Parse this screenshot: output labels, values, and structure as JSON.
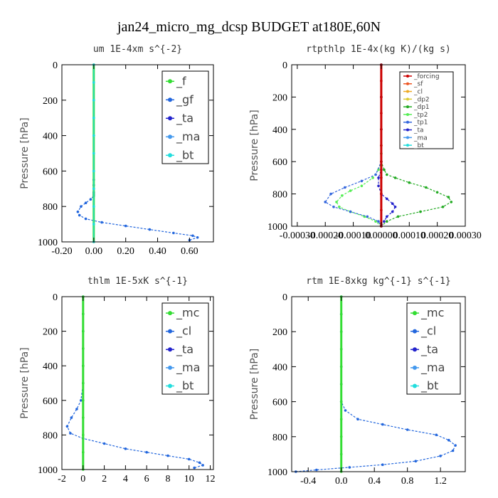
{
  "figure_title": "jan24_micro_mg_dcsp  BUDGET at180E,60N",
  "colors": {
    "f": "#33dd33",
    "gf": "#2266dd",
    "ta": "#2222cc",
    "ma": "#4499ee",
    "bt": "#22dddd",
    "forcing": "#cc0000",
    "sf": "#ee5522",
    "cl": "#eeaa22",
    "dp2": "#ddcc33",
    "dp1": "#22aa22",
    "tp2": "#55ee55",
    "tp1": "#3366dd",
    "mc": "#33dd33",
    "clb": "#2266dd"
  },
  "chart_data": [
    {
      "type": "line",
      "title": "um  1E-4xm s^{-2}",
      "ylabel": "Pressure [hPa]",
      "xlim": [
        -0.2,
        0.75
      ],
      "ylim": [
        1000,
        0
      ],
      "xticks": [
        -0.2,
        0.0,
        0.2,
        0.4,
        0.6
      ],
      "xtick_labels": [
        "-0.20",
        "0.00",
        "0.20",
        "0.40",
        "0.60"
      ],
      "yticks": [
        0,
        200,
        400,
        600,
        800,
        1000
      ],
      "legend": [
        "_f",
        "_gf",
        "_ta",
        "_ma",
        "_bt"
      ],
      "series": [
        {
          "key": "gf",
          "color": "#2266dd",
          "x": [
            0,
            0,
            0,
            0,
            0,
            0,
            0,
            0,
            0,
            0,
            0,
            0,
            0,
            -0.02,
            -0.05,
            -0.08,
            -0.1,
            -0.09,
            -0.05,
            0.05,
            0.2,
            0.35,
            0.5,
            0.62,
            0.65,
            0.6
          ],
          "y": [
            0,
            100,
            200,
            300,
            400,
            500,
            600,
            650,
            680,
            700,
            720,
            730,
            740,
            760,
            780,
            800,
            830,
            850,
            870,
            890,
            910,
            930,
            950,
            965,
            975,
            990
          ]
        },
        {
          "key": "f",
          "color": "#33dd33",
          "x": [
            0,
            0,
            0,
            0,
            0,
            0,
            0,
            0,
            0,
            0,
            0
          ],
          "y": [
            0,
            100,
            200,
            300,
            400,
            500,
            600,
            700,
            800,
            900,
            1000
          ]
        },
        {
          "key": "bt",
          "color": "#22dddd",
          "x": [
            0,
            0,
            0,
            0,
            0,
            0,
            0,
            0,
            0,
            0,
            0
          ],
          "y": [
            0,
            100,
            200,
            300,
            400,
            500,
            600,
            700,
            800,
            900,
            1000
          ]
        }
      ]
    },
    {
      "type": "line",
      "title": "rtpthlp  1E-4x(kg K)/(kg s)",
      "ylabel": "Pressure [hPa]",
      "xlim": [
        -0.00032,
        0.0003
      ],
      "ylim": [
        1000,
        0
      ],
      "xticks": [
        -0.0003,
        -0.0002,
        -0.0001,
        0.0,
        0.0001,
        0.0002,
        0.0003
      ],
      "xtick_labels": [
        "-0.00030",
        "-0.00020",
        "-0.00010",
        "0.00000",
        "0.00010",
        "0.00020",
        "0.00030"
      ],
      "yticks": [
        0,
        200,
        400,
        600,
        800,
        1000
      ],
      "legend": [
        "_forcing",
        "_sf",
        "_cl",
        "_dp2",
        "_dp1",
        "_tp2",
        "_tp1",
        "_ta",
        "_ma",
        "_bt"
      ],
      "series": [
        {
          "key": "dp1",
          "color": "#22aa22",
          "x": [
            0,
            0,
            0,
            0,
            0,
            0,
            1e-05,
            2e-05,
            5e-05,
            0.0001,
            0.00016,
            0.0002,
            0.00024,
            0.00025,
            0.00022,
            0.00014,
            6e-05,
            2e-05,
            0
          ],
          "y": [
            0,
            200,
            400,
            500,
            550,
            600,
            650,
            680,
            700,
            730,
            760,
            790,
            820,
            850,
            880,
            910,
            940,
            970,
            1000
          ]
        },
        {
          "key": "tp2",
          "color": "#55ee55",
          "x": [
            0,
            0,
            0,
            0,
            -1e-05,
            -3e-05,
            -7e-05,
            -0.00011,
            -0.00014,
            -0.00016,
            -0.00015,
            -0.00011,
            -6e-05,
            -2e-05,
            0
          ],
          "y": [
            0,
            200,
            400,
            600,
            650,
            700,
            750,
            780,
            810,
            850,
            880,
            910,
            940,
            970,
            1000
          ]
        },
        {
          "key": "tp1",
          "color": "#3366dd",
          "x": [
            0,
            0,
            0,
            0,
            -2e-05,
            -7e-05,
            -0.00013,
            -0.00018,
            -0.0002,
            -0.00017,
            -0.00011,
            -5e-05,
            -1e-05,
            0
          ],
          "y": [
            0,
            200,
            400,
            600,
            680,
            720,
            760,
            800,
            850,
            880,
            910,
            940,
            970,
            1000
          ]
        },
        {
          "key": "ta",
          "color": "#2222cc",
          "x": [
            0,
            0,
            0,
            0,
            -1e-05,
            -1e-05,
            0,
            2e-05,
            4e-05,
            5e-05,
            4e-05,
            2e-05,
            1e-05,
            0
          ],
          "y": [
            0,
            200,
            400,
            650,
            700,
            750,
            800,
            830,
            860,
            880,
            910,
            940,
            970,
            1000
          ]
        },
        {
          "key": "forcing",
          "color": "#cc0000",
          "x": [
            0,
            0,
            0,
            0,
            0,
            0,
            0,
            0,
            0,
            0,
            0
          ],
          "y": [
            0,
            100,
            200,
            300,
            400,
            500,
            600,
            700,
            800,
            900,
            1000
          ]
        }
      ]
    },
    {
      "type": "line",
      "title": "thlm  1E-5xK s^{-1}",
      "ylabel": "Pressure [hPa]",
      "xlim": [
        -2,
        12.3
      ],
      "ylim": [
        1000,
        0
      ],
      "xticks": [
        -2,
        0,
        2,
        4,
        6,
        8,
        10,
        12
      ],
      "xtick_labels": [
        "-2",
        "0",
        "2",
        "4",
        "6",
        "8",
        "10",
        "12"
      ],
      "yticks": [
        0,
        200,
        400,
        600,
        800,
        1000
      ],
      "legend": [
        "_mc",
        "_cl",
        "_ta",
        "_ma",
        "_bt"
      ],
      "series": [
        {
          "key": "cl",
          "color": "#2266dd",
          "x": [
            0,
            0,
            0,
            0,
            0,
            0,
            -0.2,
            -0.6,
            -1.1,
            -1.5,
            -1.2,
            0,
            2,
            4,
            6,
            8,
            10,
            11,
            11.3,
            10.5
          ],
          "y": [
            0,
            100,
            200,
            300,
            400,
            500,
            600,
            650,
            700,
            750,
            790,
            820,
            850,
            880,
            900,
            920,
            940,
            960,
            975,
            990
          ]
        },
        {
          "key": "mc",
          "color": "#33dd33",
          "x": [
            0,
            0,
            0,
            0,
            0,
            0,
            0,
            0,
            0,
            0,
            0
          ],
          "y": [
            0,
            100,
            200,
            300,
            400,
            500,
            600,
            700,
            800,
            900,
            1000
          ]
        }
      ]
    },
    {
      "type": "line",
      "title": "rtm  1E-8xkg kg^{-1} s^{-1}",
      "ylabel": "Pressure [hPa]",
      "xlim": [
        -0.6,
        1.5
      ],
      "ylim": [
        1000,
        0
      ],
      "xticks": [
        -0.4,
        0.0,
        0.4,
        0.8,
        1.2
      ],
      "xtick_labels": [
        "-0.4",
        "0.0",
        "0.4",
        "0.8",
        "1.2"
      ],
      "yticks": [
        0,
        200,
        400,
        600,
        800,
        1000
      ],
      "legend": [
        "_mc",
        "_cl",
        "_ta",
        "_ma",
        "_bt"
      ],
      "series": [
        {
          "key": "cl",
          "color": "#2266dd",
          "x": [
            0,
            0,
            0,
            0,
            0,
            0,
            0,
            0.05,
            0.2,
            0.5,
            0.8,
            1.15,
            1.3,
            1.38,
            1.35,
            1.2,
            0.9,
            0.5,
            0.1,
            -0.3,
            -0.55
          ],
          "y": [
            0,
            100,
            200,
            300,
            400,
            500,
            600,
            650,
            700,
            730,
            760,
            790,
            820,
            850,
            880,
            910,
            940,
            960,
            975,
            990,
            1000
          ]
        },
        {
          "key": "mc",
          "color": "#33dd33",
          "x": [
            0,
            0,
            0,
            0,
            0,
            0,
            0,
            0,
            0,
            0,
            0
          ],
          "y": [
            0,
            100,
            200,
            300,
            400,
            500,
            600,
            700,
            800,
            900,
            1000
          ]
        }
      ]
    }
  ]
}
